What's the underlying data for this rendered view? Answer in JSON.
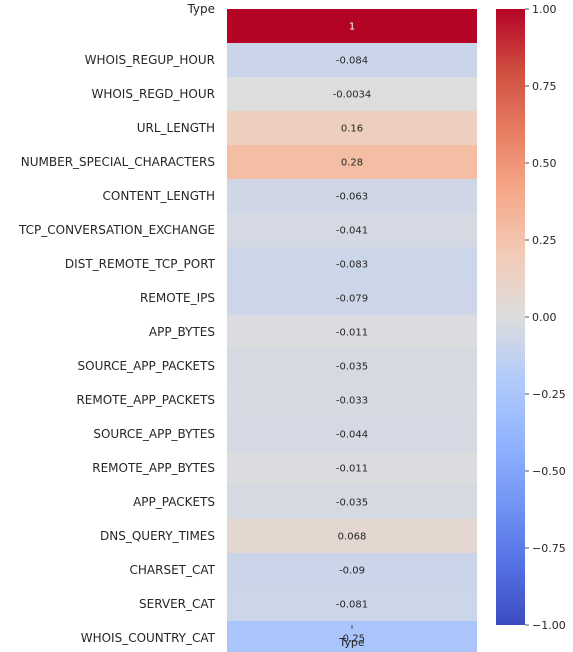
{
  "chart_data": {
    "type": "heatmap",
    "title": "",
    "xlabel": "Type",
    "column_label": "Type",
    "rows": [
      "Type",
      "WHOIS_REGUP_HOUR",
      "WHOIS_REGD_HOUR",
      "URL_LENGTH",
      "NUMBER_SPECIAL_CHARACTERS",
      "CONTENT_LENGTH",
      "TCP_CONVERSATION_EXCHANGE",
      "DIST_REMOTE_TCP_PORT",
      "REMOTE_IPS",
      "APP_BYTES",
      "SOURCE_APP_PACKETS",
      "REMOTE_APP_PACKETS",
      "SOURCE_APP_BYTES",
      "REMOTE_APP_BYTES",
      "APP_PACKETS",
      "DNS_QUERY_TIMES",
      "CHARSET_CAT",
      "SERVER_CAT",
      "WHOIS_COUNTRY_CAT"
    ],
    "values": [
      1.0,
      -0.084,
      -0.0034,
      0.16,
      0.28,
      -0.063,
      -0.041,
      -0.083,
      -0.079,
      -0.011,
      -0.035,
      -0.033,
      -0.044,
      -0.011,
      -0.035,
      0.068,
      -0.09,
      -0.081,
      -0.25
    ],
    "value_labels": [
      "1",
      "-0.084",
      "-0.0034",
      "0.16",
      "0.28",
      "-0.063",
      "-0.041",
      "-0.083",
      "-0.079",
      "-0.011",
      "-0.035",
      "-0.033",
      "-0.044",
      "-0.011",
      "-0.035",
      "0.068",
      "-0.09",
      "-0.081",
      "-0.25"
    ],
    "colormap": "coolwarm",
    "vmin": -1.0,
    "vmax": 1.0,
    "colorbar_ticks": [
      1.0,
      0.75,
      0.5,
      0.25,
      0.0,
      -0.25,
      -0.5,
      -0.75,
      -1.0
    ],
    "colorbar_tick_labels": [
      "1.00",
      "0.75",
      "0.50",
      "0.25",
      "0.00",
      "−0.25",
      "−0.50",
      "−0.75",
      "−1.00"
    ],
    "colors": {
      "low": "#3b4cc0",
      "mid": "#dddddd",
      "high": "#b40426"
    }
  }
}
